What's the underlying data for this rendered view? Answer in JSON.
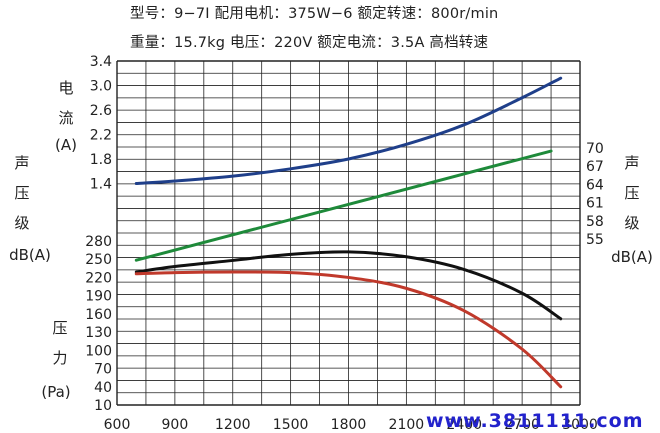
{
  "header": {
    "line1": "型号：9−7Ⅰ   配用电机：375W−6  额定转速：800r/min",
    "line2": "重量：15.7kg  电压：220V  额定电流：3.5A  高档转速"
  },
  "watermark": "www.3811111.com",
  "chart_data": [
    {
      "type": "line",
      "grid": true,
      "xlim": [
        600,
        3000
      ],
      "x_ticks": [
        "600",
        "900",
        "1200",
        "1500",
        "1800",
        "2100",
        "2400",
        "2700",
        "3000"
      ],
      "current_axis": {
        "label_chars": [
          "电",
          "流",
          "(A)"
        ],
        "ticks": [
          "3.4",
          "3.0",
          "2.6",
          "2.2",
          "1.8",
          "1.4"
        ],
        "ylim": [
          1.4,
          3.4
        ]
      },
      "sound_axis_left": {
        "label_chars": [
          "声",
          "压",
          "级",
          "dB(A)"
        ]
      },
      "sound_axis_right": {
        "label_chars": [
          "声",
          "压",
          "级",
          "dB(A)"
        ],
        "ticks": [
          "70",
          "67",
          "64",
          "61",
          "58",
          "55"
        ],
        "ylim": [
          55,
          70
        ]
      },
      "pressure_axis": {
        "label_chars": [
          "压",
          "力",
          "(Pa)"
        ],
        "ticks": [
          "280",
          "250",
          "220",
          "190",
          "160",
          "130",
          "100",
          "70",
          "40",
          "10"
        ],
        "ylim": [
          10,
          280
        ]
      },
      "series": [
        {
          "axis": "current",
          "color": "#1f3f8a",
          "x": [
            700,
            900,
            1200,
            1500,
            1800,
            2100,
            2400,
            2700,
            2900
          ],
          "y": [
            1.4,
            1.44,
            1.52,
            1.64,
            1.8,
            2.04,
            2.36,
            2.8,
            3.12
          ]
        },
        {
          "axis": "sound",
          "color": "#1e8a3a",
          "x": [
            700,
            2850
          ],
          "y": [
            51.5,
            69.5
          ]
        },
        {
          "axis": "pressure",
          "color": "#111111",
          "x": [
            700,
            900,
            1200,
            1500,
            1800,
            2100,
            2400,
            2700,
            2900
          ],
          "y": [
            229,
            238,
            248,
            258,
            262,
            254,
            233,
            194,
            152
          ]
        },
        {
          "axis": "pressure",
          "color": "#c0392b",
          "x": [
            700,
            900,
            1200,
            1500,
            1800,
            2100,
            2400,
            2700,
            2900
          ],
          "y": [
            226,
            228,
            229,
            228,
            220,
            202,
            165,
            102,
            40
          ]
        }
      ]
    }
  ]
}
